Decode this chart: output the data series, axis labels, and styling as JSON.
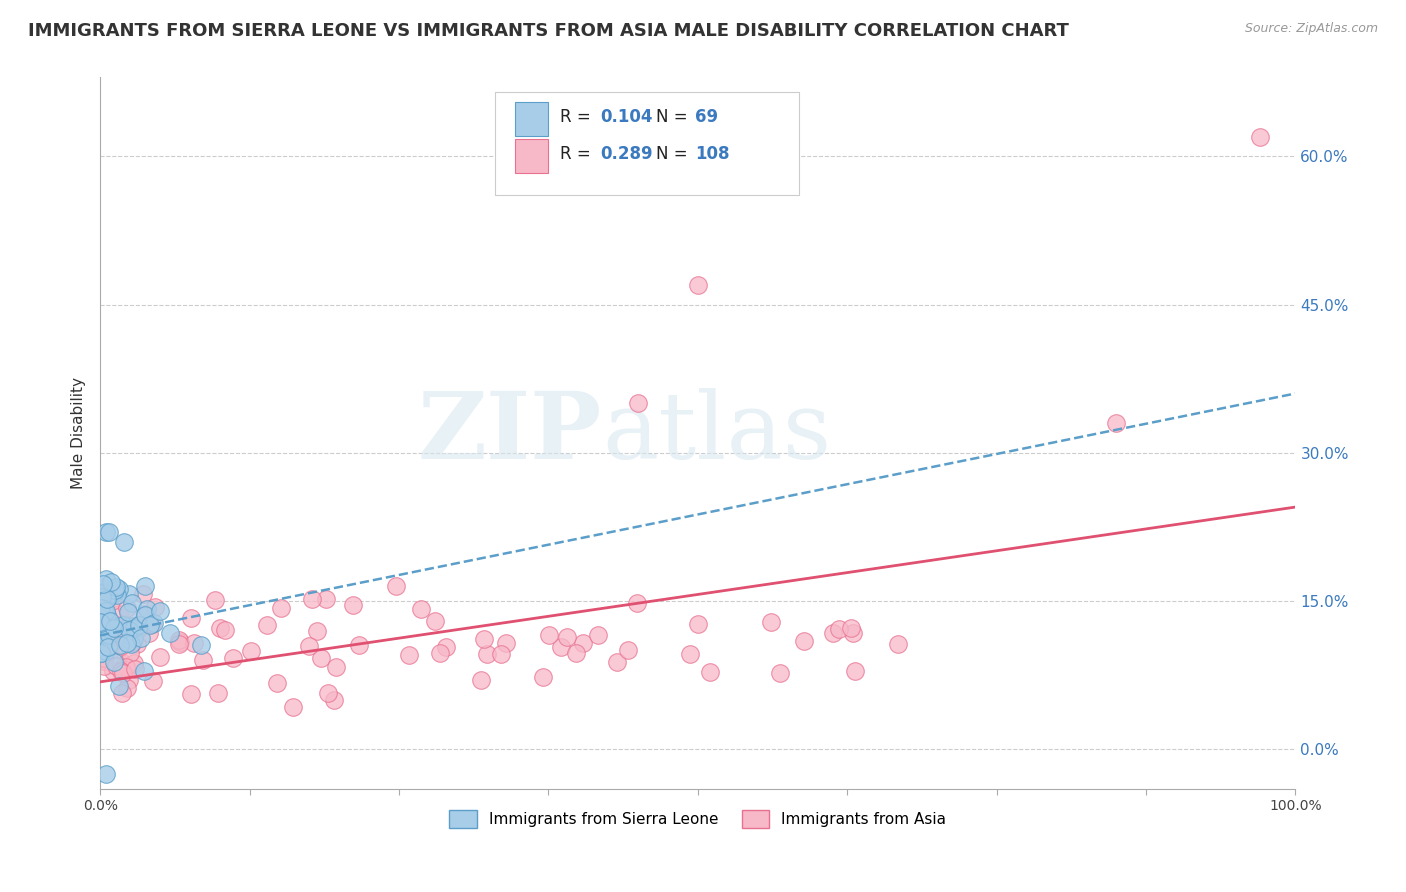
{
  "title": "IMMIGRANTS FROM SIERRA LEONE VS IMMIGRANTS FROM ASIA MALE DISABILITY CORRELATION CHART",
  "source": "Source: ZipAtlas.com",
  "ylabel": "Male Disability",
  "xlim": [
    0.0,
    1.0
  ],
  "ylim": [
    -0.04,
    0.68
  ],
  "y_ticks": [
    0.0,
    0.15,
    0.3,
    0.45,
    0.6
  ],
  "y_tick_labels": [
    "0.0%",
    "15.0%",
    "30.0%",
    "45.0%",
    "60.0%"
  ],
  "x_ticks": [
    0.0,
    0.125,
    0.25,
    0.375,
    0.5,
    0.625,
    0.75,
    0.875,
    1.0
  ],
  "x_tick_labels": [
    "0.0%",
    "",
    "",
    "",
    "",
    "",
    "",
    "",
    "100.0%"
  ],
  "series1_label": "Immigrants from Sierra Leone",
  "series1_R": "0.104",
  "series1_N": "69",
  "series1_scatter_color": "#a8cde8",
  "series1_edge_color": "#5a9ec9",
  "series1_line_color": "#5a9ec9",
  "series2_label": "Immigrants from Asia",
  "series2_R": "0.289",
  "series2_N": "108",
  "series2_scatter_color": "#f7b8c8",
  "series2_edge_color": "#e87090",
  "series2_line_color": "#e05070",
  "legend_R_color": "#3b7abf",
  "legend_N_color": "#222222",
  "background_color": "#ffffff",
  "grid_color": "#cccccc",
  "watermark_zip": "ZIP",
  "watermark_atlas": "atlas",
  "title_fontsize": 13,
  "axis_label_fontsize": 11,
  "tick_fontsize": 10,
  "legend_fontsize": 12
}
